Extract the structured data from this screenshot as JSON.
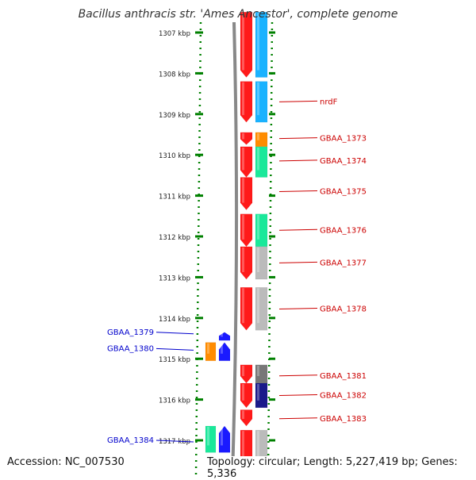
{
  "title": "Bacillus anthracis str. 'Ames Ancestor', complete genome",
  "footer": {
    "accession": "Accession: NC_007530",
    "summary": "Topology: circular; Length: 5,227,419 bp; Genes: 5,336"
  },
  "colors": {
    "red": "#ff1a1a",
    "blue": "#1a1aff",
    "orange": "#ff8c00",
    "cyan": "#1ab2ff",
    "green": "#1ae89a",
    "gray": "#bbbbbb",
    "darkgray": "#777777",
    "navy": "#1a1a8a",
    "label_red": "#cc0000",
    "label_blue": "#0000cc",
    "tick_green": "#008000"
  },
  "ruler": {
    "ticks": [
      {
        "label": "1307 kbp",
        "kbp": 1307
      },
      {
        "label": "1308 kbp",
        "kbp": 1308
      },
      {
        "label": "1309 kbp",
        "kbp": 1309
      },
      {
        "label": "1310 kbp",
        "kbp": 1310
      },
      {
        "label": "1311 kbp",
        "kbp": 1311
      },
      {
        "label": "1312 kbp",
        "kbp": 1312
      },
      {
        "label": "1313 kbp",
        "kbp": 1313
      },
      {
        "label": "1314 kbp",
        "kbp": 1314
      },
      {
        "label": "1315 kbp",
        "kbp": 1315
      },
      {
        "label": "1316 kbp",
        "kbp": 1316
      },
      {
        "label": "1317 kbp",
        "kbp": 1317
      }
    ]
  },
  "features": [
    {
      "track": "fwd_cds",
      "strand": "+",
      "color": "red",
      "start": 1306.5,
      "end": 1308.1
    },
    {
      "track": "fwd_cds",
      "strand": "+",
      "color": "red",
      "start": 1308.2,
      "end": 1309.2
    },
    {
      "track": "fwd_cds",
      "strand": "+",
      "color": "red",
      "start": 1309.45,
      "end": 1309.75
    },
    {
      "track": "fwd_cds",
      "strand": "+",
      "color": "red",
      "start": 1309.8,
      "end": 1310.55
    },
    {
      "track": "fwd_cds",
      "strand": "+",
      "color": "red",
      "start": 1310.55,
      "end": 1311.35
    },
    {
      "track": "fwd_cds",
      "strand": "+",
      "color": "red",
      "start": 1311.45,
      "end": 1312.25
    },
    {
      "track": "fwd_cds",
      "strand": "+",
      "color": "red",
      "start": 1312.25,
      "end": 1313.05
    },
    {
      "track": "fwd_cds",
      "strand": "+",
      "color": "red",
      "start": 1313.25,
      "end": 1314.3
    },
    {
      "track": "fwd_cds",
      "strand": "+",
      "color": "red",
      "start": 1315.15,
      "end": 1315.6
    },
    {
      "track": "fwd_cds",
      "strand": "+",
      "color": "red",
      "start": 1315.6,
      "end": 1316.2
    },
    {
      "track": "fwd_cds",
      "strand": "+",
      "color": "red",
      "start": 1316.25,
      "end": 1316.65
    },
    {
      "track": "fwd_cds",
      "strand": "+",
      "color": "red",
      "start": 1316.75,
      "end": 1318.0
    },
    {
      "track": "fwd_class",
      "color": "cyan",
      "start": 1306.5,
      "end": 1308.1
    },
    {
      "track": "fwd_class",
      "color": "cyan",
      "start": 1308.2,
      "end": 1309.2
    },
    {
      "track": "fwd_class",
      "color": "orange",
      "start": 1309.45,
      "end": 1309.8
    },
    {
      "track": "fwd_class",
      "color": "green",
      "start": 1309.8,
      "end": 1310.55
    },
    {
      "track": "fwd_class",
      "color": "green",
      "start": 1311.45,
      "end": 1312.25
    },
    {
      "track": "fwd_class",
      "color": "gray",
      "start": 1312.25,
      "end": 1313.05
    },
    {
      "track": "fwd_class",
      "color": "gray",
      "start": 1313.25,
      "end": 1314.3
    },
    {
      "track": "fwd_class",
      "color": "darkgray",
      "start": 1315.15,
      "end": 1315.6
    },
    {
      "track": "fwd_class",
      "color": "navy",
      "start": 1315.6,
      "end": 1316.2
    },
    {
      "track": "fwd_class",
      "color": "gray",
      "start": 1316.75,
      "end": 1318.0
    },
    {
      "track": "rev_cds",
      "strand": "-",
      "color": "blue",
      "start": 1314.35,
      "end": 1314.55
    },
    {
      "track": "rev_cds",
      "strand": "-",
      "color": "blue",
      "start": 1314.6,
      "end": 1315.05
    },
    {
      "track": "rev_cds",
      "strand": "-",
      "color": "blue",
      "start": 1316.65,
      "end": 1317.3
    },
    {
      "track": "rev_class",
      "color": "orange",
      "start": 1314.6,
      "end": 1315.05
    },
    {
      "track": "rev_class",
      "color": "green",
      "start": 1316.65,
      "end": 1317.3
    }
  ],
  "labels": {
    "right": [
      {
        "text": "nrdF",
        "kbp": 1308.7
      },
      {
        "text": "GBAA_1373",
        "kbp": 1309.6
      },
      {
        "text": "GBAA_1374",
        "kbp": 1310.15
      },
      {
        "text": "GBAA_1375",
        "kbp": 1310.9
      },
      {
        "text": "GBAA_1376",
        "kbp": 1311.85
      },
      {
        "text": "GBAA_1377",
        "kbp": 1312.65
      },
      {
        "text": "GBAA_1378",
        "kbp": 1313.78
      },
      {
        "text": "GBAA_1381",
        "kbp": 1315.42
      },
      {
        "text": "GBAA_1382",
        "kbp": 1315.9
      },
      {
        "text": "GBAA_1383",
        "kbp": 1316.47
      }
    ],
    "left": [
      {
        "text": "GBAA_1379",
        "kbp": 1314.35
      },
      {
        "text": "GBAA_1380",
        "kbp": 1314.75
      },
      {
        "text": "GBAA_1384",
        "kbp": 1317.0
      }
    ]
  }
}
